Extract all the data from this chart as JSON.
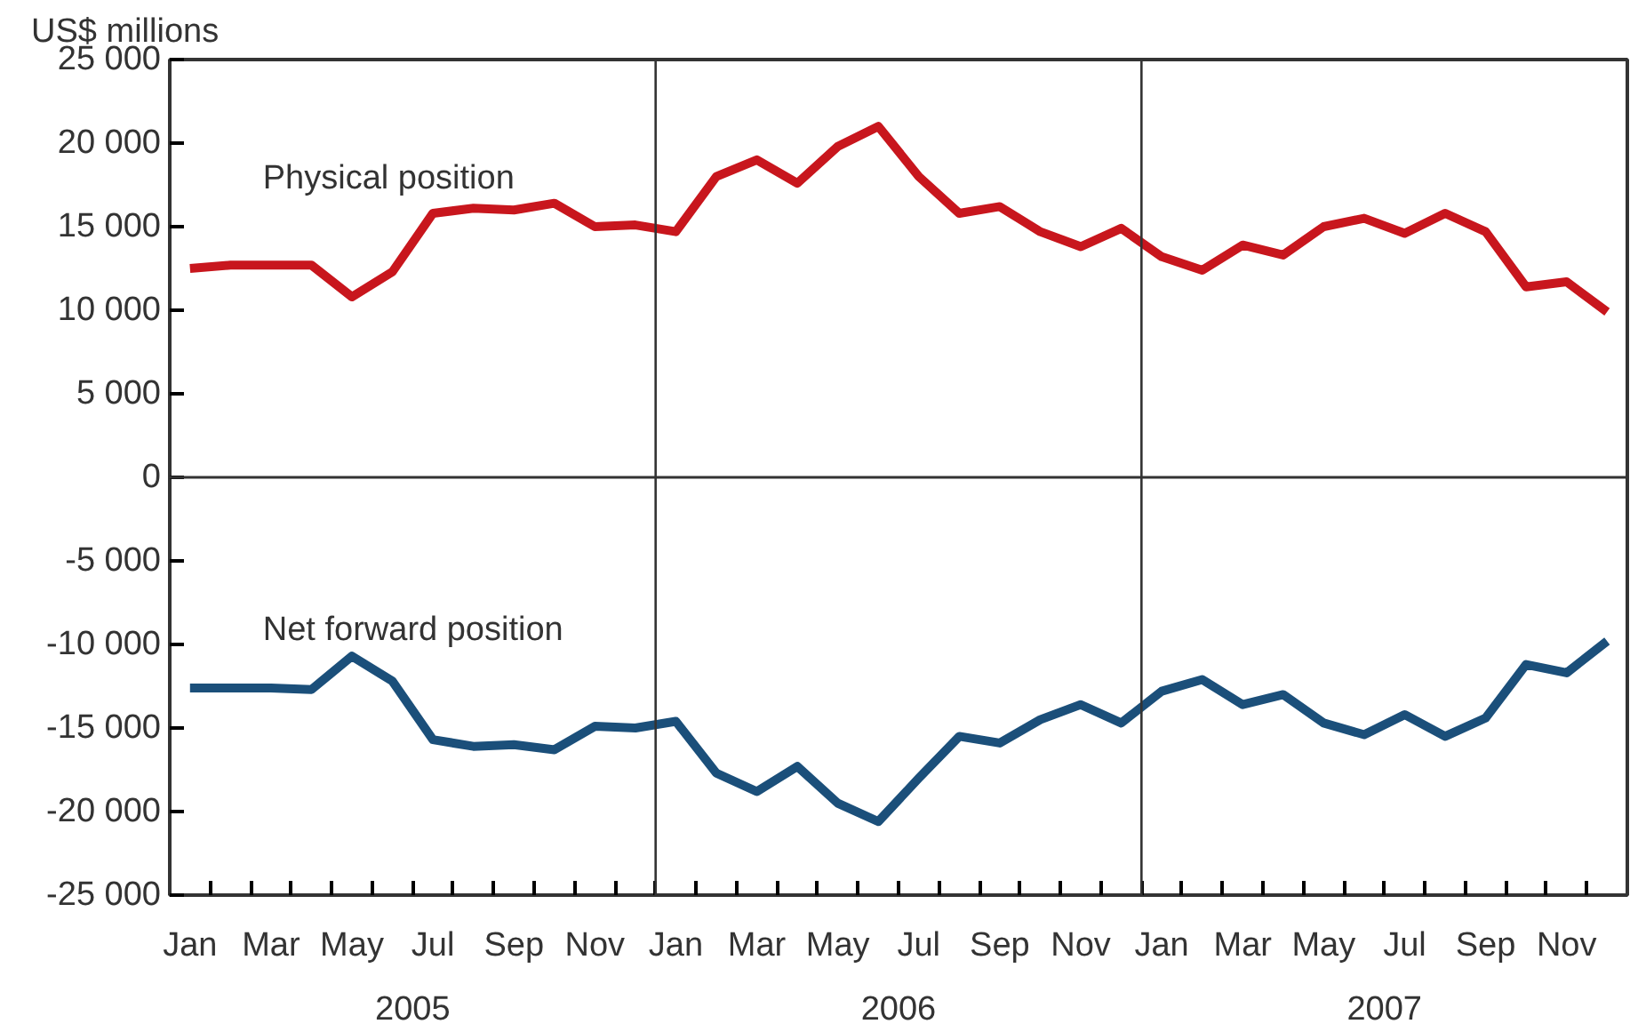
{
  "chart_data": {
    "type": "line",
    "ylabel": "US$ millions",
    "categories": [
      "Jan",
      null,
      "Mar",
      null,
      "May",
      null,
      "Jul",
      null,
      "Sep",
      null,
      "Nov",
      null,
      "Jan",
      null,
      "Mar",
      null,
      "May",
      null,
      "Jul",
      null,
      "Sep",
      null,
      "Nov",
      null,
      "Jan",
      null,
      "Mar",
      null,
      "May",
      null,
      "Jul",
      null,
      "Sep",
      null,
      "Nov",
      null
    ],
    "series": [
      {
        "name": "Physical position",
        "color": "#c8161d",
        "values": [
          12500,
          12700,
          12700,
          12700,
          10800,
          12300,
          15800,
          16100,
          16000,
          16400,
          15000,
          15100,
          14700,
          18000,
          19000,
          17600,
          19800,
          21000,
          18000,
          15800,
          16200,
          14700,
          13800,
          14900,
          13200,
          12400,
          13900,
          13300,
          15000,
          15500,
          14600,
          15800,
          14700,
          11400,
          11700,
          9900
        ]
      },
      {
        "name": "Net forward position",
        "color": "#1b4f7a",
        "values": [
          -12600,
          -12600,
          -12600,
          -12700,
          -10700,
          -12200,
          -15700,
          -16100,
          -16000,
          -16300,
          -14900,
          -15000,
          -14600,
          -17700,
          -18800,
          -17300,
          -19500,
          -20600,
          -18000,
          -15500,
          -15900,
          -14500,
          -13600,
          -14700,
          -12800,
          -12100,
          -13600,
          -13000,
          -14700,
          -15400,
          -14200,
          -15500,
          -14400,
          -11200,
          -11700,
          -9800
        ]
      }
    ],
    "ylim": [
      -25000,
      25000
    ],
    "yticks": [
      {
        "value": -25000,
        "label": "-25 000"
      },
      {
        "value": -20000,
        "label": "-20 000"
      },
      {
        "value": -15000,
        "label": "-15 000"
      },
      {
        "value": -10000,
        "label": "-10 000"
      },
      {
        "value": -5000,
        "label": "-5 000"
      },
      0,
      {
        "value": 5000,
        "label": "5 000"
      },
      {
        "value": 10000,
        "label": "10 000"
      },
      {
        "value": 15000,
        "label": "15 000"
      },
      {
        "value": 20000,
        "label": "20 000"
      },
      {
        "value": 25000,
        "label": "25 000"
      }
    ],
    "ref_lines": [
      {
        "axis": "y",
        "value": 0,
        "color": "#333333"
      }
    ],
    "annotations": [
      "2005",
      "2006",
      "2007"
    ],
    "grid": false,
    "marker": "none",
    "line_style": "solid"
  }
}
